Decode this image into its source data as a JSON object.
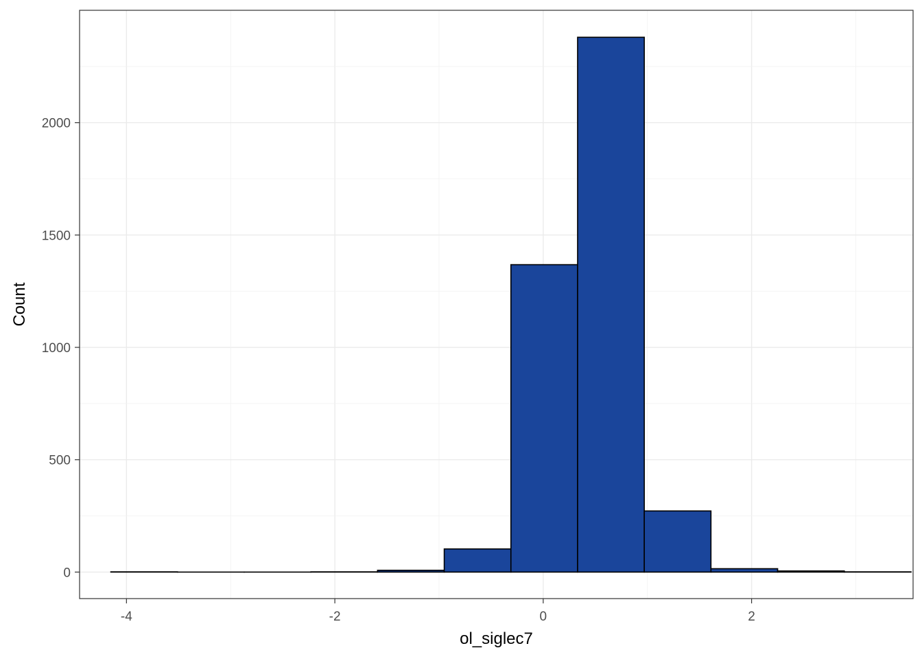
{
  "chart_data": {
    "type": "bar",
    "subtype": "histogram",
    "xlabel": "ol_siglec7",
    "ylabel": "Count",
    "xlim": [
      -4.45,
      3.55
    ],
    "ylim": [
      -118,
      2500
    ],
    "x_ticks": [
      -4,
      -2,
      0,
      2
    ],
    "x_tick_labels": [
      "-4",
      "-2",
      "0",
      "2"
    ],
    "y_ticks": [
      0,
      500,
      1000,
      1500,
      2000
    ],
    "y_tick_labels": [
      "0",
      "500",
      "1000",
      "1500",
      "2000"
    ],
    "grid": true,
    "fill_color": "#1a459b",
    "outline_color": "#000000",
    "bins": [
      {
        "x0": -4.15,
        "x1": -3.51,
        "count": 1
      },
      {
        "x0": -3.51,
        "x1": -2.87,
        "count": 0
      },
      {
        "x0": -2.87,
        "x1": -2.23,
        "count": 0
      },
      {
        "x0": -2.23,
        "x1": -1.59,
        "count": 1
      },
      {
        "x0": -1.59,
        "x1": -0.95,
        "count": 8
      },
      {
        "x0": -0.95,
        "x1": -0.31,
        "count": 103
      },
      {
        "x0": -0.31,
        "x1": 0.33,
        "count": 1368
      },
      {
        "x0": 0.33,
        "x1": 0.97,
        "count": 2380
      },
      {
        "x0": 0.97,
        "x1": 1.61,
        "count": 272
      },
      {
        "x0": 1.61,
        "x1": 2.25,
        "count": 15
      },
      {
        "x0": 2.25,
        "x1": 2.89,
        "count": 5
      },
      {
        "x0": 2.89,
        "x1": 3.53,
        "count": 1
      }
    ]
  }
}
